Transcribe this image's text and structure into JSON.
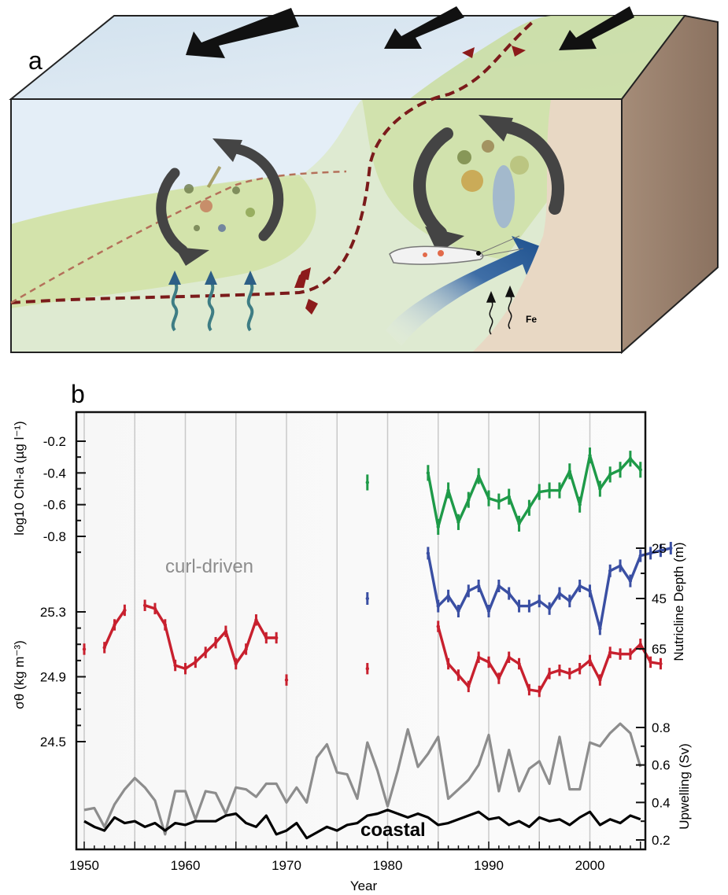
{
  "panel_a": {
    "label": "a",
    "fe_label": "Fe"
  },
  "panel_b": {
    "label": "b"
  },
  "chart_data": {
    "type": "line",
    "xlabel": "Year",
    "xlim": [
      1949,
      2006
    ],
    "x_ticks": [
      1950,
      1960,
      1970,
      1980,
      1990,
      2000
    ],
    "grid_x": [
      1950,
      1955,
      1960,
      1965,
      1970,
      1975,
      1980,
      1985,
      1990,
      1995,
      2000
    ],
    "axes": {
      "chl": {
        "label": "log10 Chl-a (µg l⁻¹)",
        "ticks": [
          -0.2,
          -0.4,
          -0.6,
          -0.8
        ],
        "tick_labels": [
          "-0.2",
          "-0.4",
          "-0.6",
          "-0.8"
        ]
      },
      "nutricline": {
        "label": "Nutricline Depth (m)",
        "ticks": [
          25,
          45,
          65
        ],
        "tick_labels": [
          "25",
          "45",
          "65"
        ]
      },
      "density": {
        "label": "σθ (kg m⁻³)",
        "ticks": [
          25.3,
          24.9,
          24.5
        ],
        "tick_labels": [
          "25.3",
          "24.9",
          "24.5"
        ]
      },
      "upwelling": {
        "label": "Upwelling (Sv)",
        "ticks": [
          0.8,
          0.6,
          0.4,
          0.2
        ],
        "tick_labels": [
          "0.8",
          "0.6",
          "0.4",
          "0.2"
        ]
      }
    },
    "series": [
      {
        "axis": "chl",
        "color": "#1e9a48",
        "error": 0.05,
        "segments": [
          [
            [
              1978,
              -0.46
            ]
          ],
          [
            [
              1984,
              -0.4
            ],
            [
              1985,
              -0.74
            ],
            [
              1986,
              -0.51
            ],
            [
              1987,
              -0.71
            ],
            [
              1988,
              -0.57
            ],
            [
              1989,
              -0.42
            ],
            [
              1990,
              -0.56
            ],
            [
              1991,
              -0.58
            ],
            [
              1992,
              -0.55
            ],
            [
              1993,
              -0.72
            ],
            [
              1994,
              -0.62
            ],
            [
              1995,
              -0.52
            ],
            [
              1996,
              -0.51
            ],
            [
              1997,
              -0.51
            ],
            [
              1998,
              -0.39
            ],
            [
              1999,
              -0.6
            ],
            [
              2000,
              -0.29
            ],
            [
              2001,
              -0.5
            ],
            [
              2002,
              -0.41
            ],
            [
              2003,
              -0.38
            ],
            [
              2004,
              -0.31
            ],
            [
              2005,
              -0.38
            ]
          ]
        ]
      },
      {
        "axis": "nutricline",
        "color": "#3a4fa3",
        "error": 2.5,
        "segments": [
          [
            [
              1978,
              45
            ]
          ],
          [
            [
              1984,
              27
            ],
            [
              1985,
              48
            ],
            [
              1986,
              44
            ],
            [
              1987,
              50
            ],
            [
              1988,
              42
            ],
            [
              1989,
              40
            ],
            [
              1990,
              50
            ],
            [
              1991,
              40
            ],
            [
              1992,
              43
            ],
            [
              1993,
              48
            ],
            [
              1994,
              48
            ],
            [
              1995,
              46
            ],
            [
              1996,
              49
            ],
            [
              1997,
              43
            ],
            [
              1998,
              46
            ],
            [
              1999,
              40
            ],
            [
              2000,
              42
            ],
            [
              2001,
              57
            ],
            [
              2002,
              34
            ],
            [
              2003,
              32
            ],
            [
              2004,
              38
            ],
            [
              2005,
              28
            ],
            [
              2006,
              27
            ],
            [
              2007,
              26
            ],
            [
              2008,
              25
            ]
          ]
        ]
      },
      {
        "axis": "density",
        "color": "#c8202e",
        "error": 0.035,
        "segments": [
          [
            [
              1950,
              25.07
            ]
          ],
          [
            [
              1952,
              25.08
            ],
            [
              1953,
              25.22
            ],
            [
              1954,
              25.31
            ]
          ],
          [
            [
              1956,
              25.34
            ],
            [
              1957,
              25.32
            ],
            [
              1958,
              25.22
            ],
            [
              1959,
              24.97
            ],
            [
              1960,
              24.95
            ],
            [
              1961,
              24.99
            ],
            [
              1962,
              25.05
            ],
            [
              1963,
              25.11
            ],
            [
              1964,
              25.18
            ],
            [
              1965,
              24.98
            ],
            [
              1966,
              25.07
            ],
            [
              1967,
              25.25
            ],
            [
              1968,
              25.14
            ],
            [
              1969,
              25.14
            ]
          ],
          [
            [
              1970,
              24.88
            ]
          ],
          [
            [
              1978,
              24.95
            ]
          ],
          [
            [
              1985,
              25.21
            ],
            [
              1986,
              24.98
            ],
            [
              1987,
              24.91
            ],
            [
              1988,
              24.84
            ],
            [
              1989,
              25.02
            ],
            [
              1990,
              24.99
            ],
            [
              1991,
              24.89
            ],
            [
              1992,
              25.02
            ],
            [
              1993,
              24.98
            ],
            [
              1994,
              24.82
            ],
            [
              1995,
              24.81
            ],
            [
              1996,
              24.92
            ],
            [
              1997,
              24.94
            ],
            [
              1998,
              24.92
            ],
            [
              1999,
              24.95
            ],
            [
              2000,
              25.0
            ],
            [
              2001,
              24.88
            ],
            [
              2002,
              25.05
            ],
            [
              2003,
              25.04
            ],
            [
              2004,
              25.04
            ],
            [
              2005,
              25.1
            ],
            [
              2006,
              24.99
            ],
            [
              2007,
              24.98
            ]
          ]
        ]
      },
      {
        "axis": "upwelling",
        "name": "curl-driven",
        "color": "#8d8d8d",
        "segments": [
          [
            [
              1950,
              0.36
            ],
            [
              1951,
              0.37
            ],
            [
              1952,
              0.27
            ],
            [
              1953,
              0.39
            ],
            [
              1954,
              0.47
            ],
            [
              1955,
              0.53
            ],
            [
              1956,
              0.48
            ],
            [
              1957,
              0.41
            ],
            [
              1958,
              0.23
            ],
            [
              1959,
              0.46
            ],
            [
              1960,
              0.46
            ],
            [
              1961,
              0.31
            ],
            [
              1962,
              0.46
            ],
            [
              1963,
              0.45
            ],
            [
              1964,
              0.34
            ],
            [
              1965,
              0.48
            ],
            [
              1966,
              0.47
            ],
            [
              1967,
              0.43
            ],
            [
              1968,
              0.5
            ],
            [
              1969,
              0.5
            ],
            [
              1970,
              0.4
            ],
            [
              1971,
              0.48
            ],
            [
              1972,
              0.4
            ],
            [
              1973,
              0.64
            ],
            [
              1974,
              0.71
            ],
            [
              1975,
              0.56
            ],
            [
              1976,
              0.55
            ],
            [
              1977,
              0.42
            ],
            [
              1978,
              0.72
            ],
            [
              1979,
              0.57
            ],
            [
              1980,
              0.38
            ],
            [
              1981,
              0.57
            ],
            [
              1982,
              0.79
            ],
            [
              1983,
              0.59
            ],
            [
              1984,
              0.66
            ],
            [
              1985,
              0.75
            ],
            [
              1986,
              0.42
            ],
            [
              1987,
              0.47
            ],
            [
              1988,
              0.52
            ],
            [
              1989,
              0.6
            ],
            [
              1990,
              0.76
            ],
            [
              1991,
              0.46
            ],
            [
              1992,
              0.68
            ],
            [
              1993,
              0.46
            ],
            [
              1994,
              0.58
            ],
            [
              1995,
              0.62
            ],
            [
              1996,
              0.5
            ],
            [
              1997,
              0.75
            ],
            [
              1998,
              0.47
            ],
            [
              1999,
              0.47
            ],
            [
              2000,
              0.72
            ],
            [
              2001,
              0.7
            ],
            [
              2002,
              0.77
            ],
            [
              2003,
              0.82
            ],
            [
              2004,
              0.77
            ],
            [
              2005,
              0.59
            ]
          ]
        ]
      },
      {
        "axis": "upwelling",
        "name": "coastal",
        "color": "#000000",
        "segments": [
          [
            [
              1950,
              0.3
            ],
            [
              1951,
              0.27
            ],
            [
              1952,
              0.25
            ],
            [
              1953,
              0.32
            ],
            [
              1954,
              0.29
            ],
            [
              1955,
              0.3
            ],
            [
              1956,
              0.27
            ],
            [
              1957,
              0.29
            ],
            [
              1958,
              0.25
            ],
            [
              1959,
              0.29
            ],
            [
              1960,
              0.28
            ],
            [
              1961,
              0.3
            ],
            [
              1962,
              0.3
            ],
            [
              1963,
              0.3
            ],
            [
              1964,
              0.33
            ],
            [
              1965,
              0.34
            ],
            [
              1966,
              0.29
            ],
            [
              1967,
              0.27
            ],
            [
              1968,
              0.33
            ],
            [
              1969,
              0.23
            ],
            [
              1970,
              0.25
            ],
            [
              1971,
              0.29
            ],
            [
              1972,
              0.21
            ],
            [
              1973,
              0.24
            ],
            [
              1974,
              0.27
            ],
            [
              1975,
              0.25
            ],
            [
              1976,
              0.28
            ],
            [
              1977,
              0.29
            ],
            [
              1978,
              0.33
            ],
            [
              1979,
              0.34
            ],
            [
              1980,
              0.36
            ],
            [
              1981,
              0.34
            ],
            [
              1982,
              0.32
            ],
            [
              1983,
              0.34
            ],
            [
              1984,
              0.32
            ],
            [
              1985,
              0.28
            ],
            [
              1986,
              0.29
            ],
            [
              1987,
              0.31
            ],
            [
              1988,
              0.33
            ],
            [
              1989,
              0.35
            ],
            [
              1990,
              0.31
            ],
            [
              1991,
              0.32
            ],
            [
              1992,
              0.28
            ],
            [
              1993,
              0.3
            ],
            [
              1994,
              0.27
            ],
            [
              1995,
              0.32
            ],
            [
              1996,
              0.3
            ],
            [
              1997,
              0.31
            ],
            [
              1998,
              0.28
            ],
            [
              1999,
              0.32
            ],
            [
              2000,
              0.35
            ],
            [
              2001,
              0.28
            ],
            [
              2002,
              0.31
            ],
            [
              2003,
              0.29
            ],
            [
              2004,
              0.33
            ],
            [
              2005,
              0.31
            ]
          ]
        ]
      }
    ]
  }
}
